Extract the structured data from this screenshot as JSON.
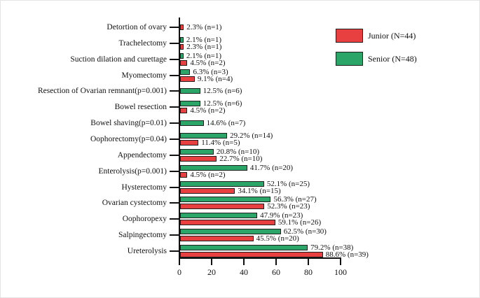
{
  "page": {
    "background": "#ffffff"
  },
  "legend": {
    "items": [
      {
        "name": "junior",
        "label": "Junior (N=44)",
        "color": "#E84040"
      },
      {
        "name": "senior",
        "label": "Senior (N=48)",
        "color": "#2CA568"
      }
    ]
  },
  "chart_data": {
    "type": "bar",
    "orientation": "horizontal",
    "title": "",
    "xlabel": "",
    "ylabel": "",
    "xlim": [
      0,
      100
    ],
    "x_ticks": [
      0,
      20,
      40,
      60,
      80,
      100
    ],
    "grid": false,
    "legend_position": "top-right",
    "bar_border_color": "#1f1f1f",
    "row_order": "Senior bar drawn above Junior bar within each category, categories listed top to bottom",
    "categories": [
      "Detortion of ovary",
      "Trachelectomy",
      "Suction dilation and curettage",
      "Myomectomy",
      "Resection of Ovarian remnant(p=0.001)",
      "Bowel resection",
      "Bowel shaving(p=0.01)",
      "Oophorectomy(p=0.04)",
      "Appendectomy",
      "Enterolysis(p=0.001)",
      "Hysterectomy",
      "Ovarian cystectomy",
      "Oophoropexy",
      "Salpingectomy",
      "Ureterolysis"
    ],
    "series": [
      {
        "name": "Senior (N=48)",
        "color": "#2CA568",
        "values": [
          null,
          2.1,
          2.1,
          6.3,
          12.5,
          12.5,
          14.6,
          29.2,
          20.8,
          41.7,
          52.1,
          56.3,
          47.9,
          62.5,
          79.2
        ],
        "labels": [
          null,
          "2.1% (n=1)",
          "2.1% (n=1)",
          "6.3% (n=3)",
          "12.5% (n=6)",
          "12.5% (n=6)",
          "14.6% (n=7)",
          "29.2% (n=14)",
          "20.8% (n=10)",
          "41.7% (n=20)",
          "52.1% (n=25)",
          "56.3% (n=27)",
          "47.9% (n=23)",
          "62.5% (n=30)",
          "79.2% (n=38)"
        ]
      },
      {
        "name": "Junior (N=44)",
        "color": "#E84040",
        "values": [
          2.3,
          2.3,
          4.5,
          9.1,
          null,
          4.5,
          null,
          11.4,
          22.7,
          4.5,
          34.1,
          52.3,
          59.1,
          45.5,
          88.6
        ],
        "labels": [
          "2.3% (n=1)",
          "2.3% (n=1)",
          "4.5% (n=2)",
          "9.1% (n=4)",
          null,
          "4.5% (n=2)",
          null,
          "11.4% (n=5)",
          "22.7% (n=10)",
          "4.5% (n=2)",
          "34.1% (n=15)",
          "52.3% (n=23)",
          "59.1% (n=26)",
          "45.5% (n=20)",
          "88.6% (n=39)"
        ]
      }
    ]
  }
}
